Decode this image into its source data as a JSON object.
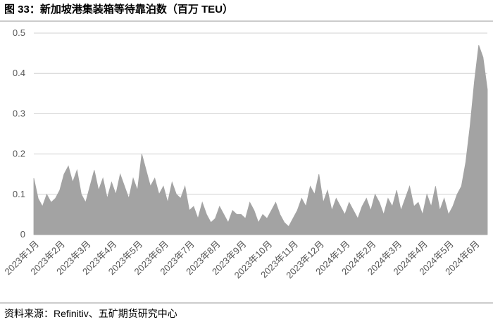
{
  "chart_data": {
    "type": "area",
    "title": "图 33：新加坡港集装箱等待靠泊数（百万 TEU）",
    "source": "资料来源：Refinitiv、五矿期货研究中心",
    "categories": [
      "2023年1月",
      null,
      null,
      null,
      null,
      null,
      "2023年2月",
      null,
      null,
      null,
      null,
      null,
      "2023年3月",
      null,
      null,
      null,
      null,
      null,
      "2023年4月",
      null,
      null,
      null,
      null,
      null,
      "2023年5月",
      null,
      null,
      null,
      null,
      null,
      "2023年6月",
      null,
      null,
      null,
      null,
      null,
      "2023年7月",
      null,
      null,
      null,
      null,
      null,
      "2023年8月",
      null,
      null,
      null,
      null,
      null,
      "2023年9月",
      null,
      null,
      null,
      null,
      null,
      "2023年10月",
      null,
      null,
      null,
      null,
      null,
      "2023年11月",
      null,
      null,
      null,
      null,
      null,
      "2023年12月",
      null,
      null,
      null,
      null,
      null,
      "2024年1月",
      null,
      null,
      null,
      null,
      null,
      "2024年2月",
      null,
      null,
      null,
      null,
      null,
      "2024年3月",
      null,
      null,
      null,
      null,
      null,
      "2024年4月",
      null,
      null,
      null,
      null,
      null,
      "2024年5月",
      null,
      null,
      null,
      null,
      null,
      "2024年6月",
      null,
      null,
      null
    ],
    "series": [
      {
        "name": "等待靠泊数",
        "color": "#a3a3a3",
        "values": [
          0.14,
          0.09,
          0.07,
          0.1,
          0.08,
          0.09,
          0.11,
          0.15,
          0.17,
          0.13,
          0.16,
          0.1,
          0.08,
          0.12,
          0.16,
          0.11,
          0.14,
          0.09,
          0.13,
          0.1,
          0.15,
          0.12,
          0.09,
          0.14,
          0.11,
          0.2,
          0.16,
          0.12,
          0.14,
          0.1,
          0.12,
          0.08,
          0.13,
          0.1,
          0.09,
          0.12,
          0.06,
          0.07,
          0.04,
          0.08,
          0.05,
          0.03,
          0.04,
          0.07,
          0.05,
          0.03,
          0.06,
          0.05,
          0.05,
          0.04,
          0.08,
          0.06,
          0.03,
          0.05,
          0.04,
          0.06,
          0.08,
          0.05,
          0.03,
          0.02,
          0.04,
          0.06,
          0.09,
          0.07,
          0.12,
          0.1,
          0.15,
          0.08,
          0.11,
          0.06,
          0.09,
          0.07,
          0.05,
          0.08,
          0.06,
          0.04,
          0.07,
          0.09,
          0.06,
          0.1,
          0.08,
          0.05,
          0.09,
          0.07,
          0.11,
          0.06,
          0.09,
          0.12,
          0.07,
          0.08,
          0.05,
          0.1,
          0.07,
          0.12,
          0.06,
          0.09,
          0.05,
          0.07,
          0.1,
          0.12,
          0.18,
          0.27,
          0.38,
          0.47,
          0.44,
          0.36
        ]
      }
    ],
    "ylim": [
      0,
      0.5
    ],
    "yticks": [
      0,
      0.1,
      0.2,
      0.3,
      0.4,
      0.5
    ],
    "grid": true
  }
}
